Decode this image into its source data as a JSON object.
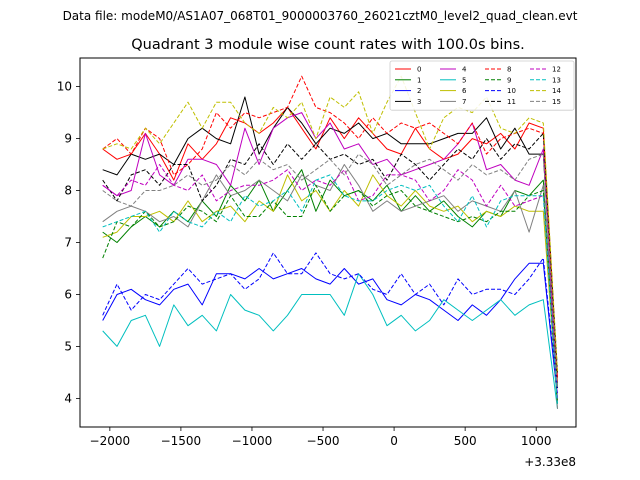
{
  "figure": {
    "suptitle": "Data file: modeM0/AS1A07_068T01_9000003760_26021cztM0_level2_quad_clean.evt"
  },
  "chart_data": {
    "type": "line",
    "title": "Quadrant 3 module wise count rates with 100.0s bins.",
    "xlabel": "",
    "ylabel": "",
    "x_offset_label": "+3.33e8",
    "xlim": [
      -2210,
      1280
    ],
    "ylim": [
      3.45,
      10.55
    ],
    "xticks": [
      -2000,
      -1500,
      -1000,
      -500,
      0,
      500,
      1000
    ],
    "xtick_labels": [
      "−2000",
      "−1500",
      "−1000",
      "−500",
      "0",
      "500",
      "1000"
    ],
    "yticks": [
      4,
      5,
      6,
      7,
      8,
      9,
      10
    ],
    "ytick_labels": [
      "4",
      "5",
      "6",
      "7",
      "8",
      "9",
      "10"
    ],
    "legend_loc": "upper right",
    "legend_ncol": 4,
    "x": [
      -2050,
      -1950,
      -1850,
      -1750,
      -1650,
      -1550,
      -1450,
      -1350,
      -1250,
      -1150,
      -1050,
      -950,
      -850,
      -750,
      -650,
      -550,
      -450,
      -350,
      -250,
      -150,
      -50,
      50,
      150,
      250,
      350,
      450,
      550,
      650,
      750,
      850,
      950,
      1050,
      1150
    ],
    "series": [
      {
        "name": "0",
        "color": "#ff0000",
        "dash": "solid",
        "values": [
          8.8,
          8.6,
          8.7,
          9.1,
          8.7,
          8.2,
          8.9,
          8.6,
          8.9,
          9.4,
          9.3,
          9.1,
          9.3,
          9.6,
          9.2,
          8.8,
          9.4,
          9.0,
          9.4,
          9.1,
          8.8,
          8.7,
          9.2,
          8.8,
          8.6,
          8.7,
          9.0,
          8.9,
          9.1,
          8.8,
          9.3,
          9.2,
          4.4
        ]
      },
      {
        "name": "1",
        "color": "#008000",
        "dash": "solid",
        "values": [
          7.2,
          7.0,
          7.3,
          7.5,
          7.3,
          7.6,
          7.4,
          7.8,
          7.5,
          8.1,
          7.8,
          8.2,
          7.6,
          8.0,
          8.4,
          7.6,
          8.2,
          7.9,
          8.0,
          7.8,
          8.1,
          7.6,
          7.9,
          7.6,
          7.8,
          7.5,
          7.3,
          7.6,
          7.5,
          8.0,
          7.9,
          8.2,
          3.9
        ]
      },
      {
        "name": "2",
        "color": "#0000ff",
        "dash": "solid",
        "values": [
          5.5,
          6.0,
          6.1,
          5.9,
          5.8,
          6.1,
          6.2,
          5.8,
          6.4,
          6.4,
          6.3,
          6.5,
          6.3,
          6.4,
          6.5,
          6.3,
          6.2,
          6.5,
          6.2,
          6.3,
          5.9,
          5.8,
          6.0,
          5.9,
          5.7,
          5.5,
          5.8,
          5.6,
          5.9,
          6.3,
          6.6,
          6.6,
          4.0
        ]
      },
      {
        "name": "3",
        "color": "#000000",
        "dash": "solid",
        "values": [
          8.4,
          8.3,
          8.7,
          8.6,
          8.7,
          8.5,
          9.0,
          9.2,
          9.0,
          8.9,
          9.8,
          8.7,
          9.2,
          9.6,
          9.3,
          8.9,
          9.2,
          9.1,
          9.3,
          9.0,
          9.1,
          8.9,
          8.9,
          8.9,
          9.0,
          9.1,
          9.1,
          9.4,
          8.8,
          9.2,
          8.7,
          8.7,
          4.2
        ]
      },
      {
        "name": "4",
        "color": "#bf00bf",
        "dash": "solid",
        "values": [
          8.1,
          7.9,
          8.0,
          9.1,
          8.3,
          8.1,
          8.6,
          8.6,
          8.5,
          8.1,
          9.2,
          8.5,
          9.2,
          9.4,
          9.5,
          9.0,
          9.3,
          8.8,
          8.9,
          8.5,
          8.6,
          8.3,
          8.4,
          8.5,
          8.6,
          8.9,
          9.3,
          8.4,
          8.5,
          8.2,
          8.1,
          8.8,
          3.9
        ]
      },
      {
        "name": "5",
        "color": "#00bfbf",
        "dash": "solid",
        "values": [
          5.3,
          5.0,
          5.5,
          5.6,
          5.0,
          5.8,
          5.4,
          5.6,
          5.3,
          6.0,
          5.7,
          5.6,
          5.3,
          5.6,
          6.0,
          6.0,
          6.0,
          5.6,
          6.4,
          6.0,
          5.4,
          5.6,
          5.3,
          5.5,
          5.9,
          5.7,
          5.5,
          5.7,
          5.9,
          5.6,
          5.8,
          5.9,
          3.8
        ]
      },
      {
        "name": "6",
        "color": "#bfbf00",
        "dash": "solid",
        "values": [
          7.1,
          7.2,
          7.5,
          7.5,
          7.6,
          7.4,
          7.8,
          7.4,
          7.6,
          7.7,
          7.4,
          7.8,
          7.6,
          8.3,
          7.8,
          8.0,
          7.6,
          8.0,
          7.7,
          8.3,
          7.9,
          7.7,
          8.0,
          7.7,
          7.6,
          7.7,
          7.4,
          7.6,
          7.5,
          7.7,
          7.6,
          7.6,
          3.9
        ]
      },
      {
        "name": "7",
        "color": "#808080",
        "dash": "solid",
        "values": [
          7.4,
          7.6,
          7.7,
          7.6,
          7.4,
          7.5,
          7.3,
          7.8,
          8.3,
          7.9,
          8.0,
          8.2,
          8.0,
          7.8,
          8.3,
          8.1,
          8.0,
          8.5,
          8.1,
          7.6,
          7.8,
          7.6,
          7.7,
          7.8,
          7.9,
          7.6,
          7.8,
          7.7,
          7.6,
          8.0,
          7.2,
          8.1,
          3.8
        ]
      },
      {
        "name": "8",
        "color": "#ff0000",
        "dash": "dashed",
        "values": [
          8.8,
          9.0,
          8.7,
          9.2,
          9.0,
          8.3,
          8.5,
          8.8,
          9.5,
          9.2,
          9.5,
          9.4,
          9.5,
          9.6,
          10.2,
          9.6,
          9.5,
          9.3,
          9.0,
          9.4,
          9.1,
          9.3,
          9.2,
          9.3,
          9.1,
          8.9,
          9.3,
          8.7,
          9.0,
          9.1,
          9.2,
          9.1,
          4.3
        ]
      },
      {
        "name": "9",
        "color": "#008000",
        "dash": "dashed",
        "values": [
          6.7,
          7.4,
          7.3,
          7.6,
          7.3,
          7.4,
          7.7,
          7.6,
          7.4,
          7.9,
          7.5,
          7.5,
          7.8,
          7.5,
          7.5,
          8.1,
          7.6,
          7.9,
          8.0,
          7.7,
          7.9,
          8.0,
          7.7,
          7.6,
          7.5,
          7.4,
          7.5,
          7.4,
          7.6,
          7.6,
          7.9,
          8.0,
          3.9
        ]
      },
      {
        "name": "10",
        "color": "#0000ff",
        "dash": "dashed",
        "values": [
          5.6,
          6.2,
          5.7,
          6.0,
          5.9,
          6.2,
          6.5,
          6.2,
          6.3,
          6.4,
          6.1,
          6.3,
          6.8,
          6.4,
          6.4,
          6.8,
          6.4,
          6.3,
          6.4,
          6.1,
          6.0,
          6.4,
          6.0,
          6.2,
          5.8,
          6.3,
          6.0,
          6.1,
          6.1,
          6.0,
          6.3,
          6.7,
          4.1
        ]
      },
      {
        "name": "11",
        "color": "#000000",
        "dash": "dashed",
        "values": [
          8.2,
          7.8,
          8.3,
          8.4,
          8.1,
          8.5,
          8.5,
          7.8,
          8.1,
          8.6,
          8.5,
          8.9,
          8.5,
          8.9,
          8.6,
          8.9,
          8.6,
          8.7,
          8.5,
          8.6,
          8.2,
          8.7,
          8.5,
          8.2,
          8.5,
          8.8,
          8.6,
          9.0,
          8.6,
          8.9,
          8.8,
          9.1,
          4.5
        ]
      },
      {
        "name": "12",
        "color": "#bf00bf",
        "dash": "dashed",
        "values": [
          8.1,
          7.9,
          8.2,
          8.1,
          8.5,
          8.1,
          8.0,
          8.3,
          7.8,
          8.0,
          8.1,
          8.1,
          8.2,
          8.4,
          8.0,
          8.2,
          8.1,
          8.4,
          7.8,
          7.9,
          8.3,
          8.3,
          8.2,
          7.8,
          8.0,
          8.4,
          8.2,
          7.7,
          8.1,
          7.7,
          7.8,
          7.9,
          4.0
        ]
      },
      {
        "name": "13",
        "color": "#00bfbf",
        "dash": "dashed",
        "values": [
          7.3,
          7.4,
          7.5,
          7.6,
          7.2,
          7.6,
          7.4,
          7.3,
          7.6,
          7.4,
          7.9,
          7.7,
          7.8,
          8.0,
          7.6,
          8.2,
          8.3,
          7.9,
          7.8,
          7.8,
          8.0,
          8.1,
          8.0,
          8.1,
          7.7,
          7.4,
          7.9,
          7.3,
          7.8,
          7.9,
          7.9,
          7.9,
          3.9
        ]
      },
      {
        "name": "14",
        "color": "#bfbf00",
        "dash": "dashed",
        "values": [
          8.8,
          8.9,
          8.8,
          9.2,
          8.9,
          9.3,
          9.7,
          9.2,
          9.7,
          9.7,
          9.3,
          9.1,
          9.6,
          9.4,
          9.7,
          9.0,
          9.8,
          9.6,
          9.9,
          9.1,
          9.7,
          10.2,
          9.5,
          8.8,
          9.4,
          9.6,
          9.5,
          9.8,
          9.2,
          9.1,
          9.4,
          9.3,
          4.5
        ]
      },
      {
        "name": "15",
        "color": "#808080",
        "dash": "dashed",
        "values": [
          8.0,
          7.8,
          7.7,
          8.0,
          8.0,
          8.1,
          8.3,
          8.1,
          8.2,
          8.5,
          8.3,
          8.6,
          8.4,
          8.5,
          8.2,
          8.4,
          8.6,
          8.3,
          8.7,
          8.5,
          8.1,
          8.3,
          8.5,
          8.6,
          8.4,
          8.2,
          8.5,
          8.3,
          8.4,
          8.2,
          8.6,
          8.7,
          4.2
        ]
      }
    ]
  }
}
